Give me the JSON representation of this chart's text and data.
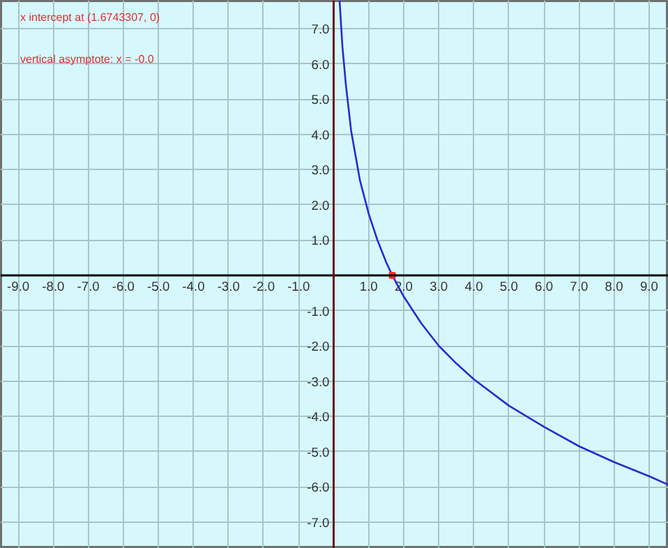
{
  "chart_data": {
    "type": "line",
    "x": [
      0.17,
      0.25,
      0.35,
      0.5,
      0.75,
      1.0,
      1.25,
      1.5,
      1.6743307,
      2.0,
      2.5,
      3.0,
      3.5,
      4.0,
      5.0,
      6.0,
      7.0,
      8.0,
      9.0,
      9.56
    ],
    "series": [
      {
        "color": "#2a2ad0",
        "values": [
          7.8,
          6.5,
          5.4,
          4.1,
          2.7,
          1.75,
          1.0,
          0.37,
          0,
          -0.6,
          -1.36,
          -2.0,
          -2.5,
          -2.95,
          -3.7,
          -4.3,
          -4.85,
          -5.3,
          -5.7,
          -5.95
        ]
      },
      {
        "type": "scatter",
        "color": "#ff3030",
        "x": [
          1.6743307
        ],
        "values": [
          0
        ]
      }
    ],
    "xlim": [
      -9.5,
      9.56
    ],
    "ylim": [
      -7.76,
      7.8
    ],
    "xticks": [
      {
        "value": -9,
        "label": "-9.0"
      },
      {
        "value": -8,
        "label": "-8.0"
      },
      {
        "value": -7,
        "label": "-7.0"
      },
      {
        "value": -6,
        "label": "-6.0"
      },
      {
        "value": -5,
        "label": "-5.0"
      },
      {
        "value": -4,
        "label": "-4.0"
      },
      {
        "value": -3,
        "label": "-3.0"
      },
      {
        "value": -2,
        "label": "-2.0"
      },
      {
        "value": -1,
        "label": "-1.0"
      },
      {
        "value": 1,
        "label": "1.0"
      },
      {
        "value": 2,
        "label": "2.0"
      },
      {
        "value": 3,
        "label": "3.0"
      },
      {
        "value": 4,
        "label": "4.0"
      },
      {
        "value": 5,
        "label": "5.0"
      },
      {
        "value": 6,
        "label": "6.0"
      },
      {
        "value": 7,
        "label": "7.0"
      },
      {
        "value": 8,
        "label": "8.0"
      },
      {
        "value": 9,
        "label": "9.0"
      }
    ],
    "yticks": [
      {
        "value": 7,
        "label": "7.0"
      },
      {
        "value": 6,
        "label": "6.0"
      },
      {
        "value": 5,
        "label": "5.0"
      },
      {
        "value": 4,
        "label": "4.0"
      },
      {
        "value": 3,
        "label": "3.0"
      },
      {
        "value": 2,
        "label": "2.0"
      },
      {
        "value": 1,
        "label": "1.0"
      },
      {
        "value": -1,
        "label": "-1.0"
      },
      {
        "value": -2,
        "label": "-2.0"
      },
      {
        "value": -3,
        "label": "-3.0"
      },
      {
        "value": -4,
        "label": "-4.0"
      },
      {
        "value": -5,
        "label": "-5.0"
      },
      {
        "value": -6,
        "label": "-6.0"
      },
      {
        "value": -7,
        "label": "-7.0"
      }
    ],
    "grid": true,
    "annotations": [
      "x intercept at (1.6743307, 0)",
      "vertical asymptote: x = -0.0"
    ]
  }
}
